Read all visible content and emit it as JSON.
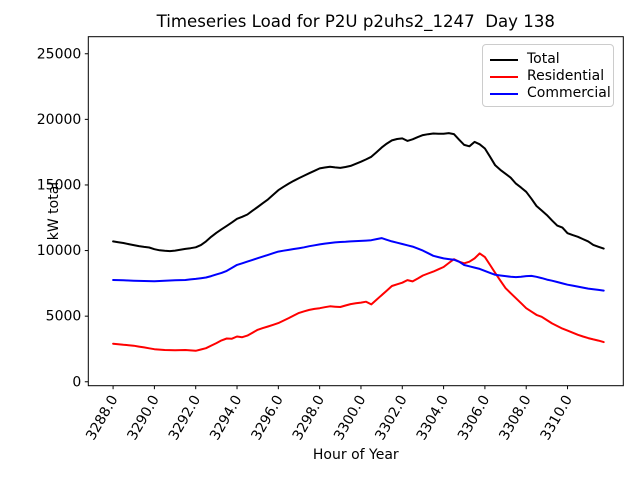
{
  "title": "Timeseries Load for P2U p2uhs2_1247  Day 138",
  "chart_data": {
    "type": "line",
    "title": "Timeseries Load for P2U p2uhs2_1247  Day 138",
    "xlabel": "Hour of Year",
    "ylabel": "kW total",
    "xlim": [
      3286.8,
      3312.7
    ],
    "ylim": [
      -300,
      26300
    ],
    "grid": false,
    "legend_position": "upper right",
    "x_tick_rotation": 60,
    "x_tick_values": [
      3288,
      3290,
      3292,
      3294,
      3296,
      3298,
      3300,
      3302,
      3304,
      3306,
      3308,
      3310
    ],
    "x_tick_labels": [
      "3288.0",
      "3290.0",
      "3292.0",
      "3294.0",
      "3296.0",
      "3298.0",
      "3300.0",
      "3302.0",
      "3304.0",
      "3306.0",
      "3308.0",
      "3310.0"
    ],
    "y_tick_values": [
      0,
      5000,
      10000,
      15000,
      20000,
      25000
    ],
    "y_tick_labels": [
      "0",
      "5000",
      "10000",
      "15000",
      "20000",
      "25000"
    ],
    "x": [
      3288.0,
      3288.25,
      3288.5,
      3288.75,
      3289.0,
      3289.25,
      3289.5,
      3289.75,
      3290.0,
      3290.25,
      3290.5,
      3290.75,
      3291.0,
      3291.25,
      3291.5,
      3291.75,
      3292.0,
      3292.25,
      3292.5,
      3292.75,
      3293.0,
      3293.25,
      3293.5,
      3293.75,
      3294.0,
      3294.25,
      3294.5,
      3294.75,
      3295.0,
      3295.25,
      3295.5,
      3295.75,
      3296.0,
      3296.25,
      3296.5,
      3296.75,
      3297.0,
      3297.25,
      3297.5,
      3297.75,
      3298.0,
      3298.25,
      3298.5,
      3298.75,
      3299.0,
      3299.25,
      3299.5,
      3299.75,
      3300.0,
      3300.25,
      3300.5,
      3300.75,
      3301.0,
      3301.25,
      3301.5,
      3301.75,
      3302.0,
      3302.25,
      3302.5,
      3302.75,
      3303.0,
      3303.25,
      3303.5,
      3303.75,
      3304.0,
      3304.25,
      3304.5,
      3304.75,
      3305.0,
      3305.25,
      3305.5,
      3305.75,
      3306.0,
      3306.25,
      3306.5,
      3306.75,
      3307.0,
      3307.25,
      3307.5,
      3307.75,
      3308.0,
      3308.25,
      3308.5,
      3308.75,
      3309.0,
      3309.25,
      3309.5,
      3309.75,
      3310.0,
      3310.25,
      3310.5,
      3310.75,
      3311.0,
      3311.25,
      3311.5,
      3311.75
    ],
    "series": [
      {
        "name": "Total",
        "color": "#000000",
        "values": [
          10700,
          10640,
          10580,
          10490,
          10420,
          10340,
          10280,
          10230,
          10100,
          10020,
          9980,
          9960,
          10000,
          10060,
          10130,
          10180,
          10250,
          10420,
          10700,
          11050,
          11350,
          11620,
          11880,
          12150,
          12420,
          12570,
          12750,
          13040,
          13320,
          13610,
          13900,
          14250,
          14600,
          14860,
          15100,
          15320,
          15520,
          15710,
          15900,
          16080,
          16260,
          16330,
          16390,
          16340,
          16300,
          16370,
          16450,
          16610,
          16770,
          16950,
          17150,
          17500,
          17850,
          18150,
          18400,
          18500,
          18550,
          18360,
          18480,
          18650,
          18800,
          18870,
          18920,
          18900,
          18900,
          18950,
          18880,
          18450,
          18050,
          17950,
          18280,
          18100,
          17780,
          17150,
          16500,
          16150,
          15850,
          15550,
          15100,
          14800,
          14480,
          13950,
          13400,
          13050,
          12700,
          12300,
          11900,
          11750,
          11320,
          11180,
          11050,
          10870,
          10700,
          10430,
          10290,
          10150
        ]
      },
      {
        "name": "Residential",
        "color": "#ff0000",
        "values": [
          2900,
          2860,
          2820,
          2790,
          2750,
          2680,
          2620,
          2550,
          2480,
          2450,
          2420,
          2410,
          2400,
          2410,
          2420,
          2390,
          2360,
          2460,
          2560,
          2760,
          2950,
          3150,
          3300,
          3280,
          3450,
          3400,
          3520,
          3740,
          3960,
          4090,
          4210,
          4340,
          4470,
          4660,
          4850,
          5050,
          5250,
          5370,
          5480,
          5550,
          5610,
          5680,
          5750,
          5720,
          5700,
          5810,
          5920,
          5980,
          6030,
          6100,
          5900,
          6250,
          6600,
          6950,
          7300,
          7430,
          7550,
          7750,
          7650,
          7870,
          8100,
          8250,
          8400,
          8570,
          8750,
          9050,
          9340,
          9150,
          9030,
          9150,
          9400,
          9780,
          9500,
          8900,
          8300,
          7700,
          7130,
          6750,
          6370,
          5990,
          5610,
          5350,
          5100,
          4950,
          4700,
          4450,
          4250,
          4050,
          3900,
          3740,
          3580,
          3450,
          3325,
          3230,
          3140,
          3020
        ]
      },
      {
        "name": "Commercial",
        "color": "#0000ff",
        "values": [
          7760,
          7750,
          7740,
          7720,
          7700,
          7690,
          7680,
          7670,
          7660,
          7680,
          7700,
          7720,
          7740,
          7750,
          7760,
          7800,
          7840,
          7890,
          7950,
          8050,
          8180,
          8300,
          8450,
          8680,
          8905,
          9030,
          9155,
          9290,
          9415,
          9540,
          9670,
          9800,
          9920,
          9990,
          10050,
          10120,
          10180,
          10250,
          10330,
          10400,
          10470,
          10530,
          10580,
          10620,
          10650,
          10670,
          10700,
          10720,
          10740,
          10760,
          10790,
          10870,
          10950,
          10820,
          10700,
          10600,
          10500,
          10400,
          10300,
          10150,
          10000,
          9800,
          9600,
          9500,
          9400,
          9350,
          9300,
          9150,
          8900,
          8800,
          8700,
          8600,
          8450,
          8300,
          8150,
          8100,
          8050,
          8000,
          7980,
          8010,
          8050,
          8070,
          8000,
          7900,
          7790,
          7700,
          7600,
          7500,
          7400,
          7330,
          7250,
          7180,
          7100,
          7050,
          7000,
          6950
        ]
      }
    ]
  },
  "legend": {
    "items": [
      {
        "label": "Total"
      },
      {
        "label": "Residential"
      },
      {
        "label": "Commercial"
      }
    ]
  }
}
